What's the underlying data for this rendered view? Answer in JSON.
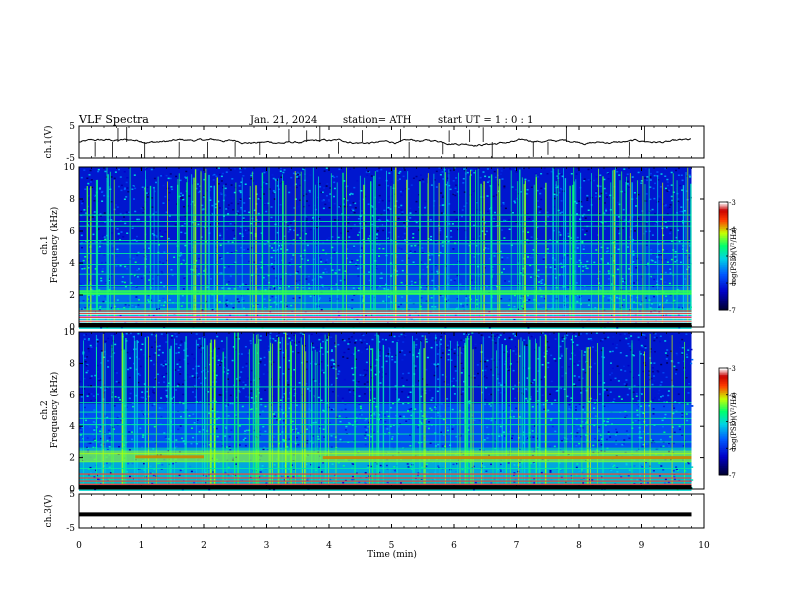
{
  "header": {
    "title": "VLF  Spectra",
    "date": "Jan. 21, 2024",
    "station": "station= ATH",
    "start": "start  UT  =   1 : 0  : 1"
  },
  "chart_data": [
    {
      "type": "line",
      "name": "ch1-waveform",
      "ylabel": "ch.1(V)",
      "ylim": [
        -5,
        5
      ],
      "yticks": [
        "5",
        "-5"
      ],
      "xlim": [
        0,
        10
      ],
      "baseline": 0,
      "color": "#000000"
    },
    {
      "type": "heatmap",
      "name": "ch1-spectrogram",
      "ylabel_line1": "ch.1",
      "ylabel_line2": "Frequency  (kHz)",
      "ylim": [
        0,
        10
      ],
      "yticks": [
        "0",
        "2",
        "4",
        "6",
        "8",
        "10"
      ],
      "xlim": [
        0,
        10
      ],
      "data_end_min": 9.8,
      "colorbar": {
        "label": "log(PSD)(V²/Hz)",
        "range": [
          -7,
          -3
        ],
        "ticks": [
          "-3",
          "-4",
          "-5",
          "-6",
          "-7"
        ],
        "colors": [
          "#000000",
          "#0000ff",
          "#00c8ff",
          "#00ff66",
          "#ffff00",
          "#ff0000",
          "#ffffff"
        ]
      },
      "strong_band_khz": [
        2.0,
        2.3
      ],
      "line_band_khz": [
        0.3,
        1.0
      ]
    },
    {
      "type": "heatmap",
      "name": "ch2-spectrogram",
      "ylabel_line1": "ch.2",
      "ylabel_line2": "Frequency  (kHz)",
      "ylim": [
        0,
        10
      ],
      "yticks": [
        "0",
        "2",
        "4",
        "6",
        "8",
        "10"
      ],
      "xlim": [
        0,
        10
      ],
      "data_end_min": 9.8,
      "colorbar": {
        "label": "log(PSD)(V²/Hz)",
        "range": [
          -7,
          -3
        ],
        "ticks": [
          "-3",
          "-4",
          "-5",
          "-6",
          "-7"
        ],
        "colors": [
          "#000000",
          "#0000ff",
          "#00c8ff",
          "#00ff66",
          "#ffff00",
          "#ff0000",
          "#ffffff"
        ]
      },
      "red_segments": [
        {
          "x0": 0.9,
          "x1": 2.0,
          "khz": 2.05
        },
        {
          "x0": 3.9,
          "x1": 9.8,
          "khz": 2.0
        }
      ]
    },
    {
      "type": "line",
      "name": "ch3-waveform",
      "ylabel": "ch.3(V)",
      "ylim": [
        -5,
        5
      ],
      "yticks": [
        "5",
        "-5"
      ],
      "xlim": [
        0,
        10
      ],
      "value": -1.0,
      "xlabel": "Time  (min)",
      "xticks": [
        "0",
        "1",
        "2",
        "3",
        "4",
        "5",
        "6",
        "7",
        "8",
        "9",
        "10"
      ],
      "color": "#000000"
    }
  ]
}
